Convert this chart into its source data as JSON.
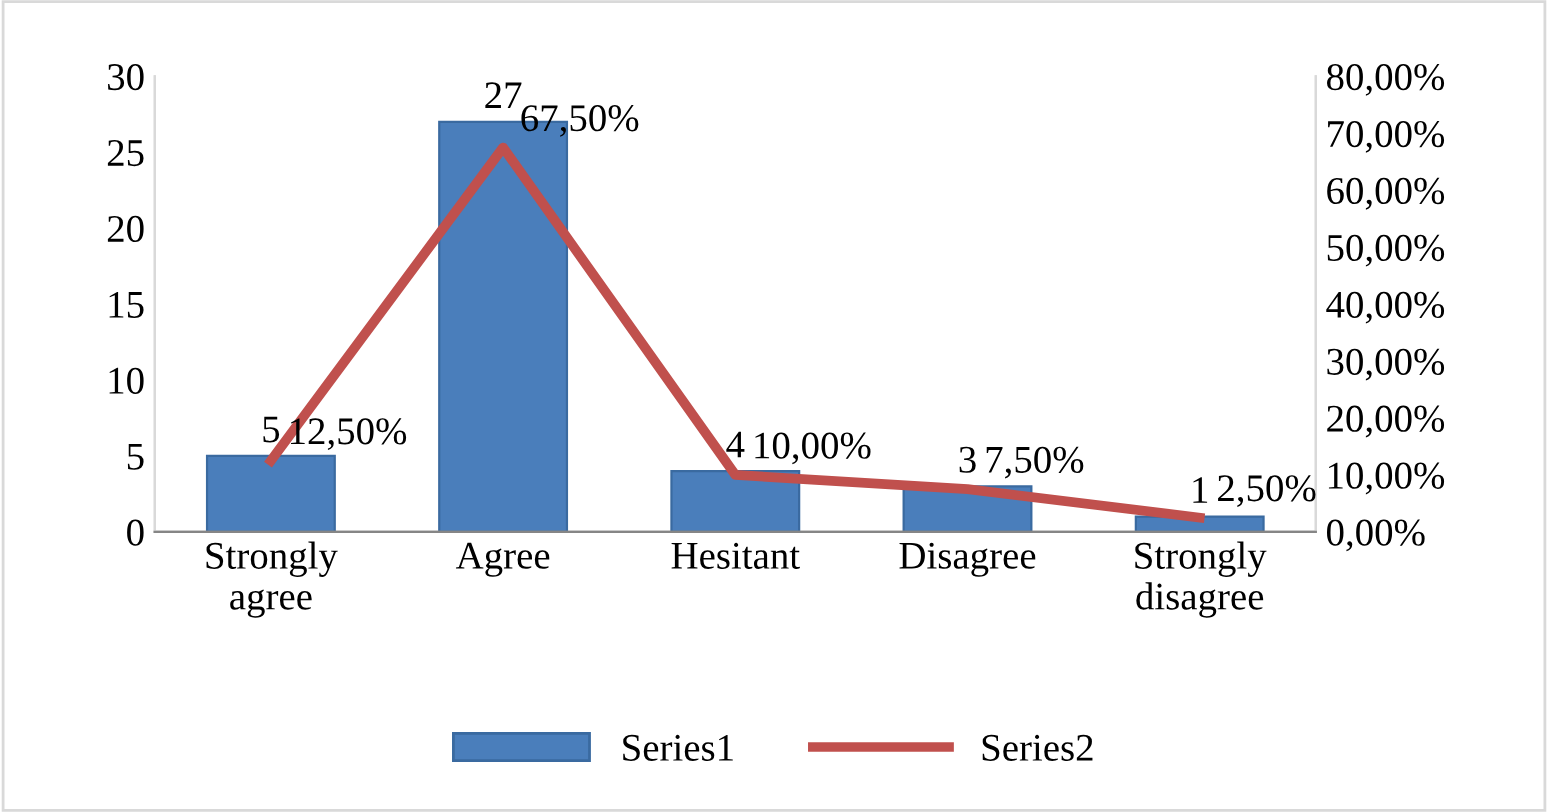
{
  "chart_data": {
    "type": "bar",
    "categories": [
      "Strongly\nagree",
      "Agree",
      "Hesitant",
      "Disagree",
      "Strongly\ndisagree"
    ],
    "series": [
      {
        "name": "Series1",
        "color": "#4a7ebb",
        "values": [
          5,
          27,
          4,
          3,
          1
        ],
        "value_labels": [
          "5",
          "27",
          "4",
          "3",
          "1"
        ]
      },
      {
        "name": "Series2",
        "type": "line",
        "axis": "y2",
        "color": "#c0504d",
        "values": [
          12.5,
          67.5,
          10,
          7.5,
          2.5
        ],
        "value_labels": [
          "12,50%",
          "67,50%",
          "10,00%",
          "7,50%",
          "2,50%"
        ]
      }
    ],
    "ylim": [
      0,
      30
    ],
    "yticks": [
      0,
      5,
      10,
      15,
      20,
      25,
      30
    ],
    "y2lim": [
      0,
      80
    ],
    "y2ticks": [
      {
        "value": 0,
        "label": "0,00%"
      },
      {
        "value": 10,
        "label": "10,00%"
      },
      {
        "value": 20,
        "label": "20,00%"
      },
      {
        "value": 30,
        "label": "30,00%"
      },
      {
        "value": 40,
        "label": "40,00%"
      },
      {
        "value": 50,
        "label": "50,00%"
      },
      {
        "value": 60,
        "label": "60,00%"
      },
      {
        "value": 70,
        "label": "70,00%"
      },
      {
        "value": 80,
        "label": "80,00%"
      }
    ],
    "grid": false,
    "legend": "bottom",
    "marker": "none",
    "line_style": "solid"
  }
}
